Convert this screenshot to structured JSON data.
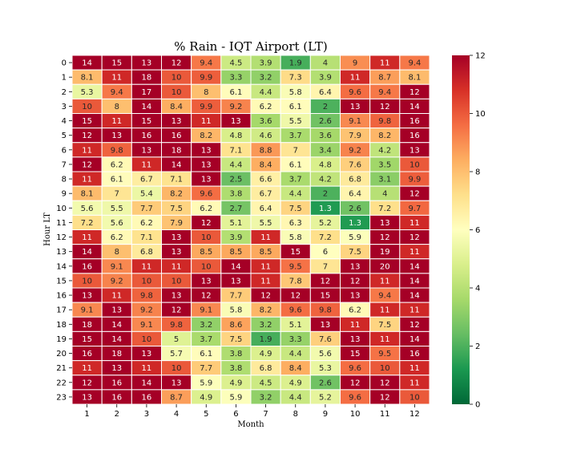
{
  "chart_data": {
    "type": "heatmap",
    "title": "% Rain - IQT Airport (LT)",
    "xlabel": "Month",
    "ylabel": "Hour LT",
    "x_tick_labels": [
      "1",
      "2",
      "3",
      "4",
      "5",
      "6",
      "7",
      "8",
      "9",
      "10",
      "11",
      "12"
    ],
    "y_tick_labels": [
      "0",
      "1",
      "2",
      "3",
      "4",
      "5",
      "6",
      "7",
      "8",
      "9",
      "10",
      "11",
      "12",
      "13",
      "14",
      "15",
      "16",
      "17",
      "18",
      "19",
      "20",
      "21",
      "22",
      "23"
    ],
    "values": [
      [
        14,
        15,
        13,
        12,
        9.4,
        4.5,
        3.9,
        1.9,
        4,
        9,
        11,
        9.4
      ],
      [
        8.1,
        11,
        18,
        10,
        9.9,
        3.3,
        3.2,
        7.3,
        3.9,
        11,
        8.7,
        8.1
      ],
      [
        5.3,
        9.4,
        17,
        10,
        8,
        6.1,
        4.4,
        5.8,
        6.4,
        9.6,
        9.4,
        12
      ],
      [
        10,
        8,
        14,
        8.4,
        9.9,
        9.2,
        6.2,
        6.1,
        2,
        13,
        12,
        14
      ],
      [
        15,
        11,
        15,
        13,
        11,
        13,
        3.6,
        5.5,
        2.6,
        9.1,
        9.8,
        16
      ],
      [
        12,
        13,
        16,
        16,
        8.2,
        4.8,
        4.6,
        3.7,
        3.6,
        7.9,
        8.2,
        16
      ],
      [
        11,
        9.8,
        13,
        18,
        13,
        7.1,
        8.8,
        7,
        3.4,
        9.2,
        4.2,
        13
      ],
      [
        12,
        6.2,
        11,
        14,
        13,
        4.4,
        8.4,
        6.1,
        4.8,
        7.6,
        3.5,
        10
      ],
      [
        11,
        6.1,
        6.7,
        7.1,
        13,
        2.5,
        6.6,
        3.7,
        4.2,
        6.8,
        3.1,
        9.9
      ],
      [
        8.1,
        7,
        5.4,
        8.2,
        9.6,
        3.8,
        6.7,
        4.4,
        2,
        6.4,
        4,
        12
      ],
      [
        5.6,
        5.5,
        7.7,
        7.5,
        6.2,
        2.7,
        6.4,
        7.5,
        1.3,
        2.6,
        7.2,
        9.7
      ],
      [
        7.2,
        5.6,
        6.2,
        7.9,
        12,
        5.1,
        5.5,
        6.3,
        5.2,
        1.3,
        13,
        11
      ],
      [
        11,
        6.2,
        7.1,
        13,
        10,
        3.9,
        11,
        5.8,
        7.2,
        5.9,
        12,
        12
      ],
      [
        14,
        8,
        6.8,
        13,
        8.5,
        8.5,
        8.5,
        15,
        6,
        7.5,
        19,
        11
      ],
      [
        16,
        9.1,
        11,
        11,
        10,
        14,
        11,
        9.5,
        7,
        13,
        20,
        14
      ],
      [
        10,
        9.2,
        10,
        10,
        13,
        13,
        11,
        7.8,
        12,
        12,
        11,
        14
      ],
      [
        13,
        11,
        9.8,
        13,
        12,
        7.7,
        12,
        12,
        15,
        13,
        9.4,
        14
      ],
      [
        9.1,
        13,
        9.2,
        12,
        9.1,
        5.8,
        8.2,
        9.6,
        9.8,
        6.2,
        11,
        11
      ],
      [
        18,
        14,
        9.1,
        9.8,
        3.2,
        8.6,
        3.2,
        5.1,
        13,
        11,
        7.5,
        12
      ],
      [
        15,
        14,
        10,
        5,
        3.7,
        7.5,
        1.9,
        3.3,
        7.6,
        13,
        11,
        14
      ],
      [
        16,
        18,
        13,
        5.7,
        6.1,
        3.8,
        4.9,
        4.4,
        5.6,
        15,
        9.5,
        16
      ],
      [
        11,
        13,
        11,
        10,
        7.7,
        3.8,
        6.8,
        8.4,
        5.3,
        9.6,
        10,
        11
      ],
      [
        12,
        16,
        14,
        13,
        5.9,
        4.9,
        4.5,
        4.9,
        2.6,
        12,
        12,
        11
      ],
      [
        13,
        16,
        16,
        8.7,
        4.9,
        5.9,
        3.2,
        4.4,
        5.2,
        9.6,
        12,
        10
      ]
    ],
    "colormap": "RdYlGn_r",
    "vmin": 0,
    "vmax": 12,
    "colorbar_ticks": [
      "0",
      "2",
      "4",
      "6",
      "8",
      "10",
      "12"
    ],
    "annotations": "values shown in each cell",
    "grid_lines": "white cell borders"
  }
}
